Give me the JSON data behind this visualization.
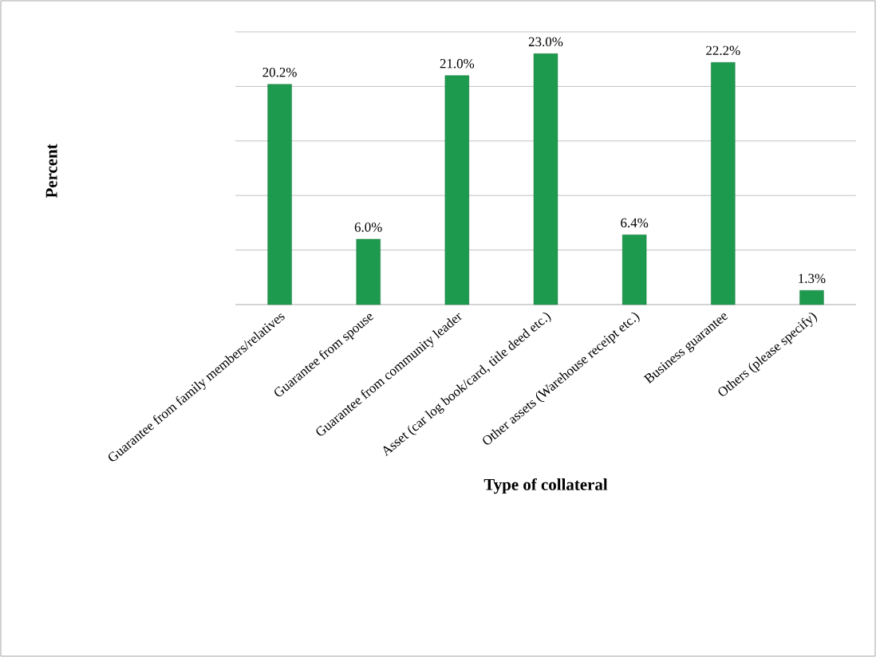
{
  "chart_data": {
    "type": "bar",
    "xlabel": "Type of collateral",
    "ylabel": "Percent",
    "categories": [
      "Guarantee from family members/relatives",
      "Guarantee from spouse",
      "Guarantee from community leader",
      "Asset (car log book/card, title deed etc.)",
      "Other assets (Warehouse receipt etc.)",
      "Business guarantee",
      "Others (please specify)"
    ],
    "values": [
      20.2,
      6.0,
      21.0,
      23.0,
      6.4,
      22.2,
      1.3
    ],
    "value_labels": [
      "20.2%",
      "6.0%",
      "21.0%",
      "23.0%",
      "6.4%",
      "22.2%",
      "1.3%"
    ],
    "color": "#1e9a4e",
    "ylim": [
      0,
      25
    ],
    "yticks": [
      {
        "value": 0,
        "label": null
      },
      {
        "value": 5,
        "label": null
      },
      {
        "value": 10,
        "label": null
      },
      {
        "value": 15,
        "label": null
      },
      {
        "value": 20,
        "label": null
      },
      {
        "value": 25,
        "label": null
      }
    ],
    "tick_labels": "x",
    "grid": "y"
  }
}
